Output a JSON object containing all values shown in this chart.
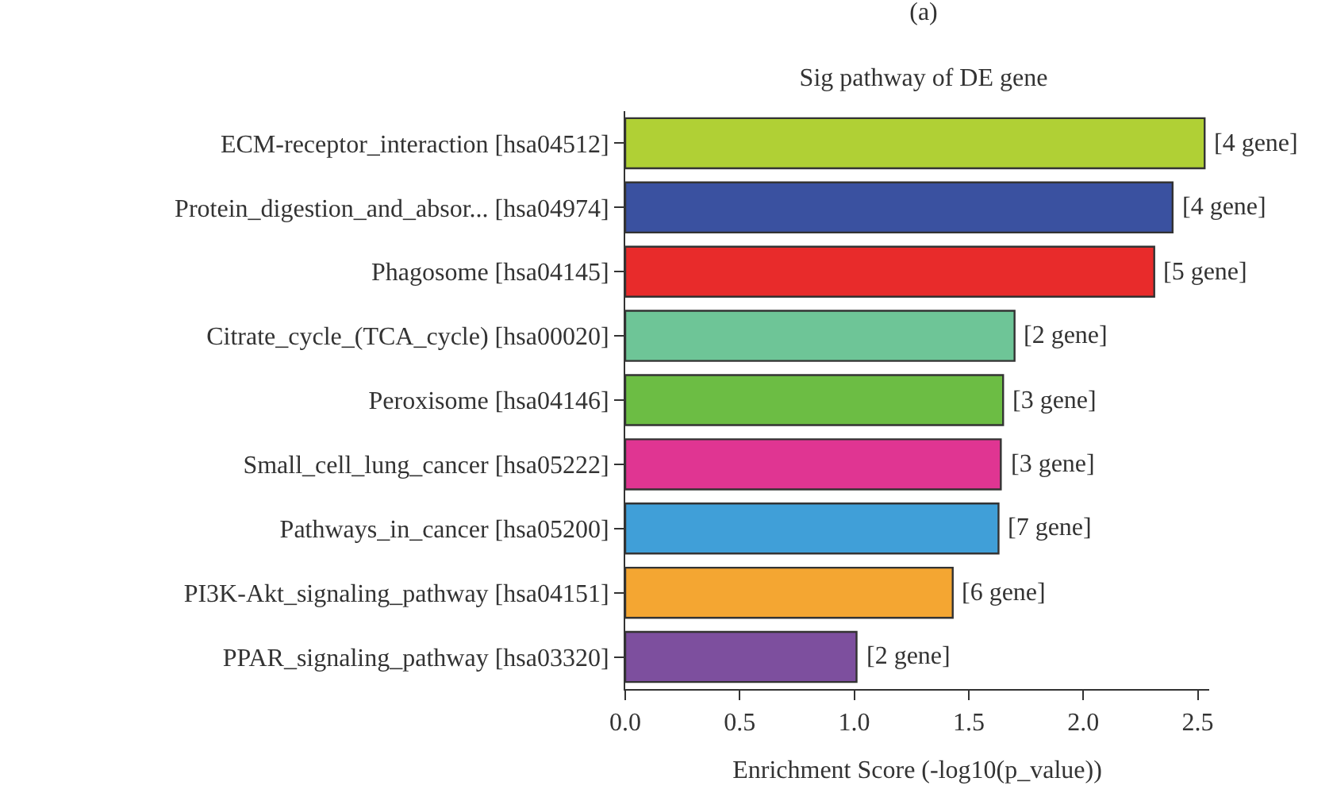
{
  "chart_data": {
    "type": "bar",
    "orientation": "horizontal",
    "title": "(a)",
    "subtitle": "Sig pathway of DE gene",
    "xlabel": "Enrichment Score (-log10(p_value))",
    "categories": [
      "ECM-receptor_interaction [hsa04512]",
      "Protein_digestion_and_absor... [hsa04974]",
      "Phagosome [hsa04145]",
      "Citrate_cycle_(TCA_cycle) [hsa00020]",
      "Peroxisome [hsa04146]",
      "Small_cell_lung_cancer [hsa05222]",
      "Pathways_in_cancer [hsa05200]",
      "PI3K-Akt_signaling_pathway [hsa04151]",
      "PPAR_signaling_pathway [hsa03320]"
    ],
    "values": [
      2.53,
      2.39,
      2.31,
      1.7,
      1.65,
      1.64,
      1.63,
      1.43,
      1.01
    ],
    "colors": [
      "#b0d035",
      "#3a51a0",
      "#e82b2b",
      "#6ec597",
      "#6cbd44",
      "#e03592",
      "#409fd8",
      "#f4a632",
      "#7d4f9e"
    ],
    "annotations": [
      {
        "text": "[4 gene]",
        "x": 2.53,
        "y": "ECM-receptor_interaction [hsa04512]"
      },
      {
        "text": "[4 gene]",
        "x": 2.39,
        "y": "Protein_digestion_and_absor... [hsa04974]"
      },
      {
        "text": "[5 gene]",
        "x": 2.31,
        "y": "Phagosome [hsa04145]"
      },
      {
        "text": "[2 gene]",
        "x": 1.7,
        "y": "Citrate_cycle_(TCA_cycle) [hsa00020]"
      },
      {
        "text": "[3 gene]",
        "x": 1.65,
        "y": "Peroxisome [hsa04146]"
      },
      {
        "text": "[3 gene]",
        "x": 1.64,
        "y": "Small_cell_lung_cancer [hsa05222]"
      },
      {
        "text": "[7 gene]",
        "x": 1.63,
        "y": "Pathways_in_cancer [hsa05200]"
      },
      {
        "text": "[6 gene]",
        "x": 1.43,
        "y": "PI3K-Akt_signaling_pathway [hsa04151]"
      },
      {
        "text": "[2 gene]",
        "x": 1.01,
        "y": "PPAR_signaling_pathway [hsa03320]"
      }
    ],
    "xlim": [
      0,
      2.55
    ],
    "xticks": [
      {
        "value": 0,
        "label": "0.0"
      },
      0.5,
      {
        "value": 1,
        "label": "1.0"
      },
      1.5,
      {
        "value": 2,
        "label": "2.0"
      },
      2.5
    ],
    "grid": false,
    "legend": false
  }
}
